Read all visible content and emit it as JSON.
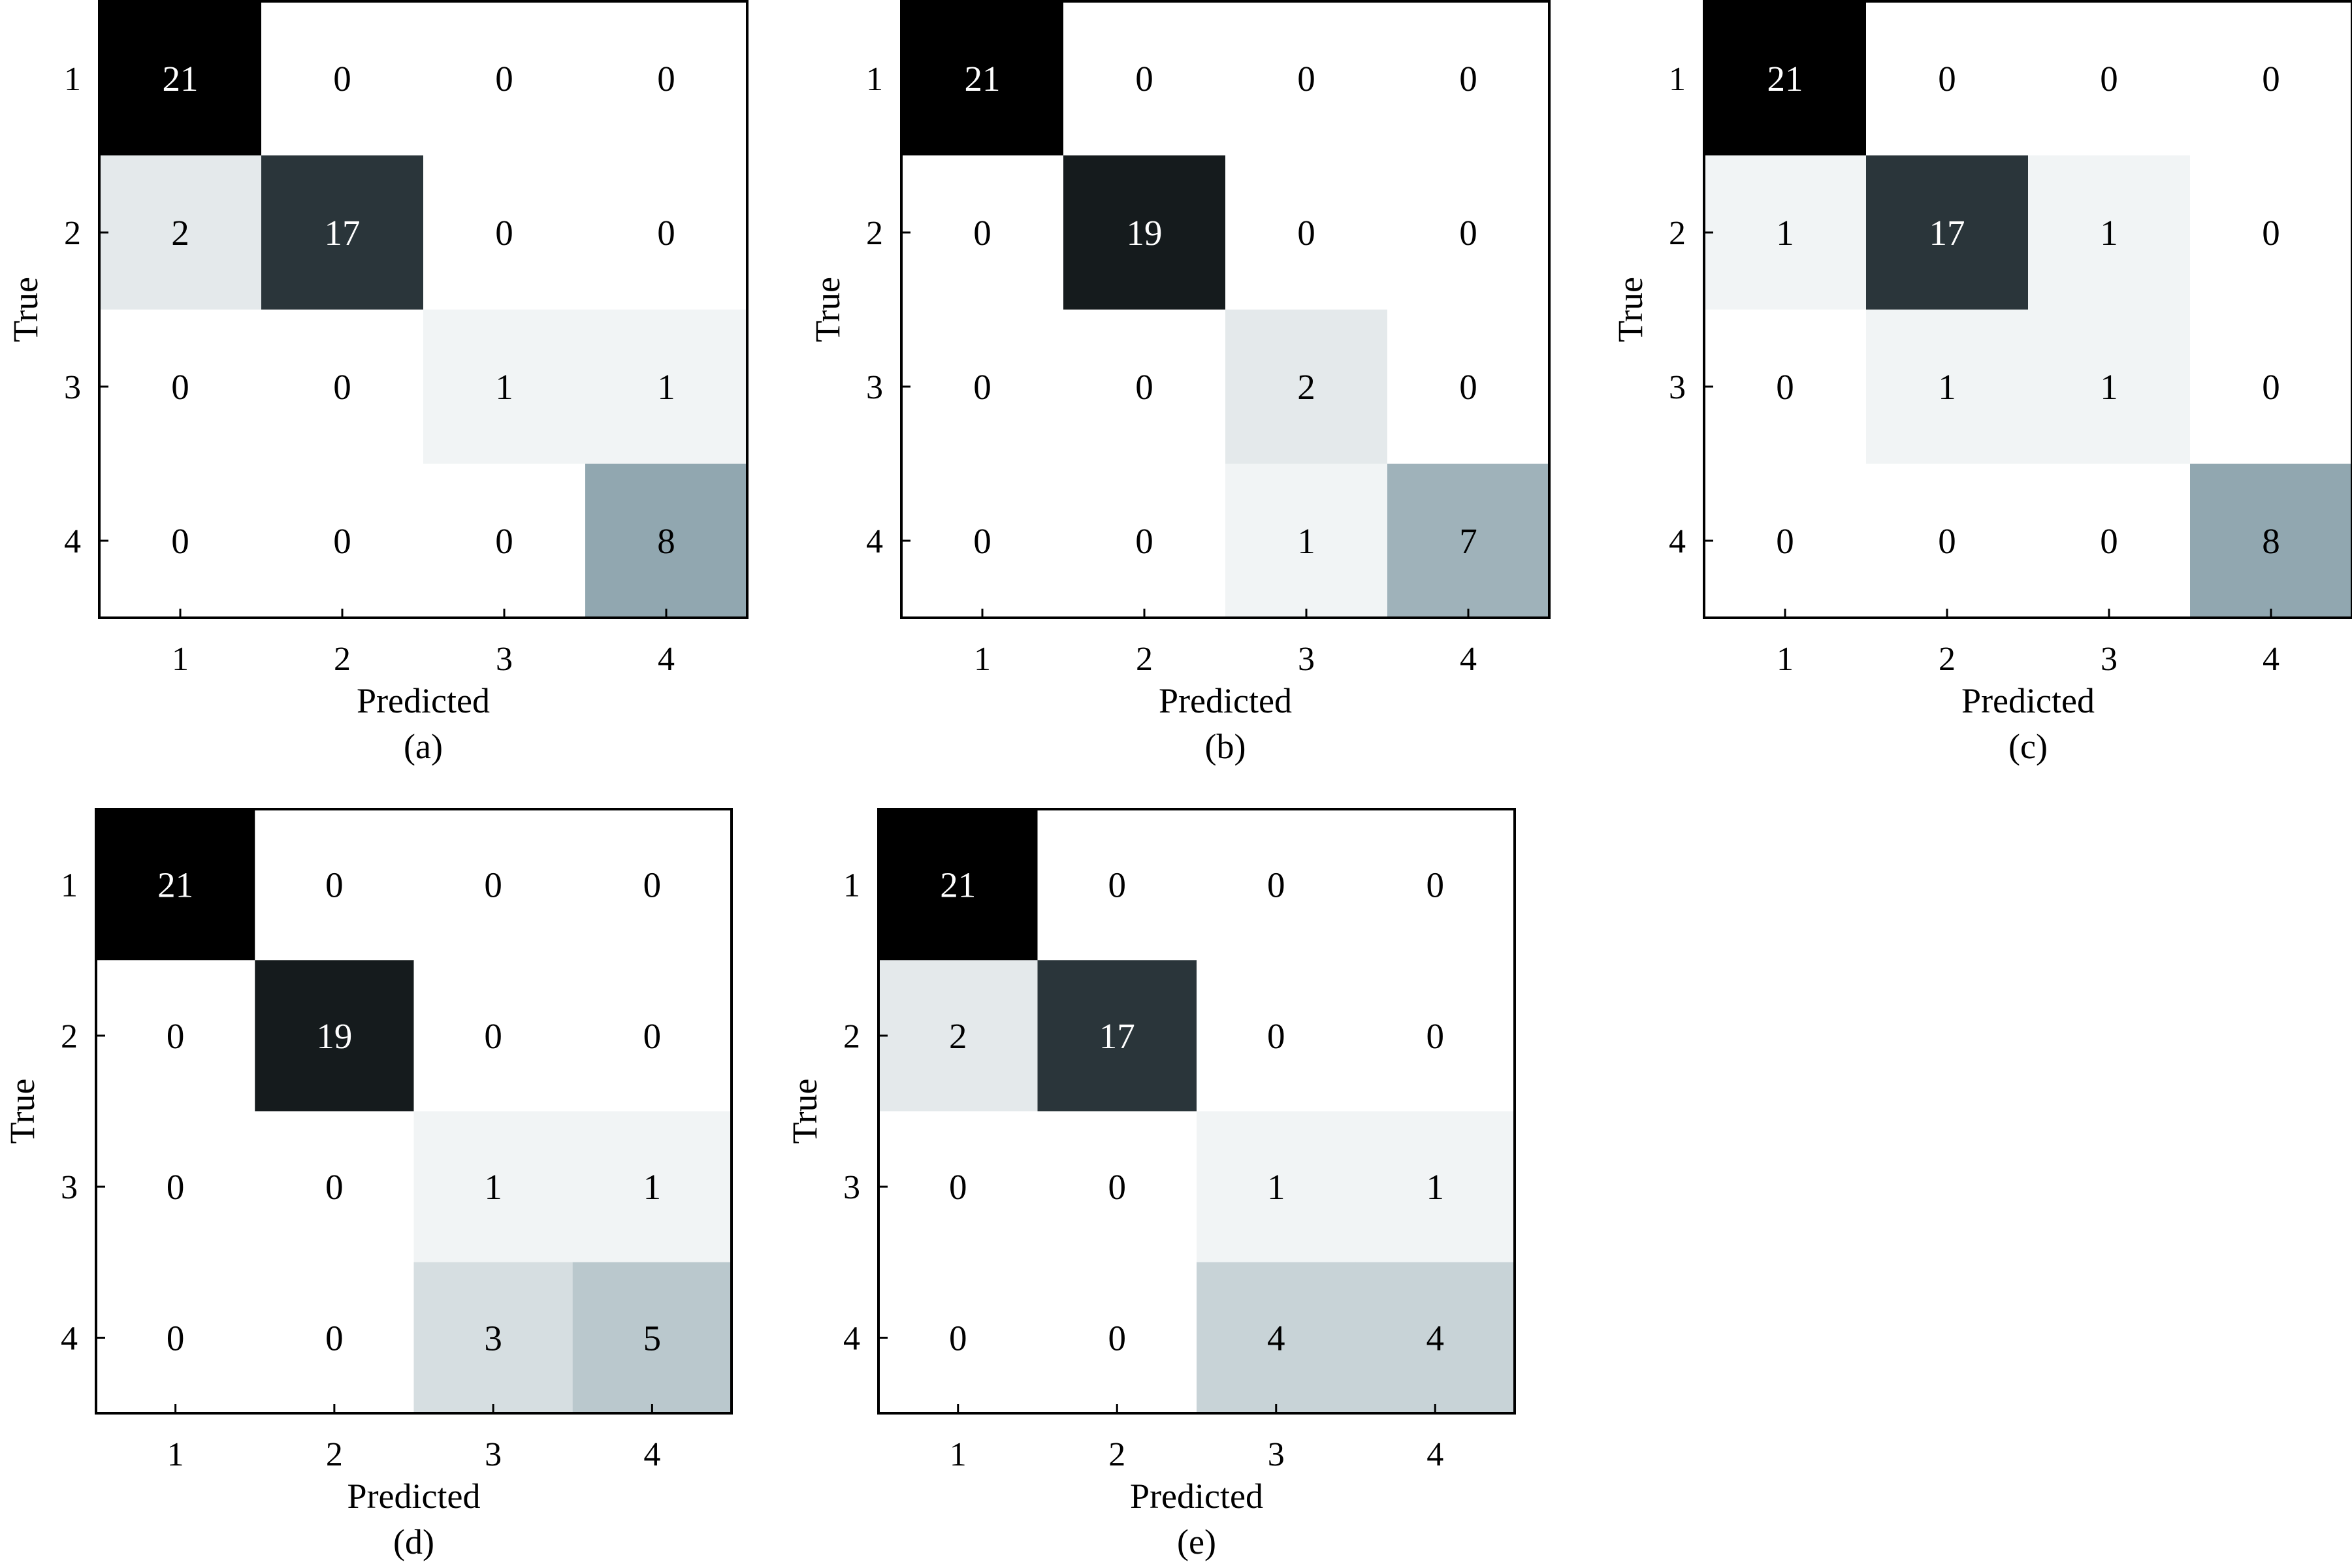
{
  "chart_data": [
    {
      "type": "heatmap",
      "caption": "(a)",
      "xlabel": "Predicted",
      "ylabel": "True",
      "x_ticks": [
        "1",
        "2",
        "3",
        "4"
      ],
      "y_ticks": [
        "1",
        "2",
        "3",
        "4"
      ],
      "matrix": [
        [
          21,
          0,
          0,
          0
        ],
        [
          2,
          17,
          0,
          0
        ],
        [
          0,
          0,
          1,
          1
        ],
        [
          0,
          0,
          0,
          8
        ]
      ]
    },
    {
      "type": "heatmap",
      "caption": "(b)",
      "xlabel": "Predicted",
      "ylabel": "True",
      "x_ticks": [
        "1",
        "2",
        "3",
        "4"
      ],
      "y_ticks": [
        "1",
        "2",
        "3",
        "4"
      ],
      "matrix": [
        [
          21,
          0,
          0,
          0
        ],
        [
          0,
          19,
          0,
          0
        ],
        [
          0,
          0,
          2,
          0
        ],
        [
          0,
          0,
          1,
          7
        ]
      ]
    },
    {
      "type": "heatmap",
      "caption": "(c)",
      "xlabel": "Predicted",
      "ylabel": "True",
      "x_ticks": [
        "1",
        "2",
        "3",
        "4"
      ],
      "y_ticks": [
        "1",
        "2",
        "3",
        "4"
      ],
      "matrix": [
        [
          21,
          0,
          0,
          0
        ],
        [
          1,
          17,
          1,
          0
        ],
        [
          0,
          1,
          1,
          0
        ],
        [
          0,
          0,
          0,
          8
        ]
      ]
    },
    {
      "type": "heatmap",
      "caption": "(d)",
      "xlabel": "Predicted",
      "ylabel": "True",
      "x_ticks": [
        "1",
        "2",
        "3",
        "4"
      ],
      "y_ticks": [
        "1",
        "2",
        "3",
        "4"
      ],
      "matrix": [
        [
          21,
          0,
          0,
          0
        ],
        [
          0,
          19,
          0,
          0
        ],
        [
          0,
          0,
          1,
          1
        ],
        [
          0,
          0,
          3,
          5
        ]
      ]
    },
    {
      "type": "heatmap",
      "caption": "(e)",
      "xlabel": "Predicted",
      "ylabel": "True",
      "x_ticks": [
        "1",
        "2",
        "3",
        "4"
      ],
      "y_ticks": [
        "1",
        "2",
        "3",
        "4"
      ],
      "matrix": [
        [
          21,
          0,
          0,
          0
        ],
        [
          2,
          17,
          0,
          0
        ],
        [
          0,
          0,
          1,
          1
        ],
        [
          0,
          0,
          4,
          4
        ]
      ]
    }
  ],
  "colormap": {
    "low": "#ffffff",
    "mid": "#6f8c97",
    "high": "#000000",
    "max_value": 21
  }
}
